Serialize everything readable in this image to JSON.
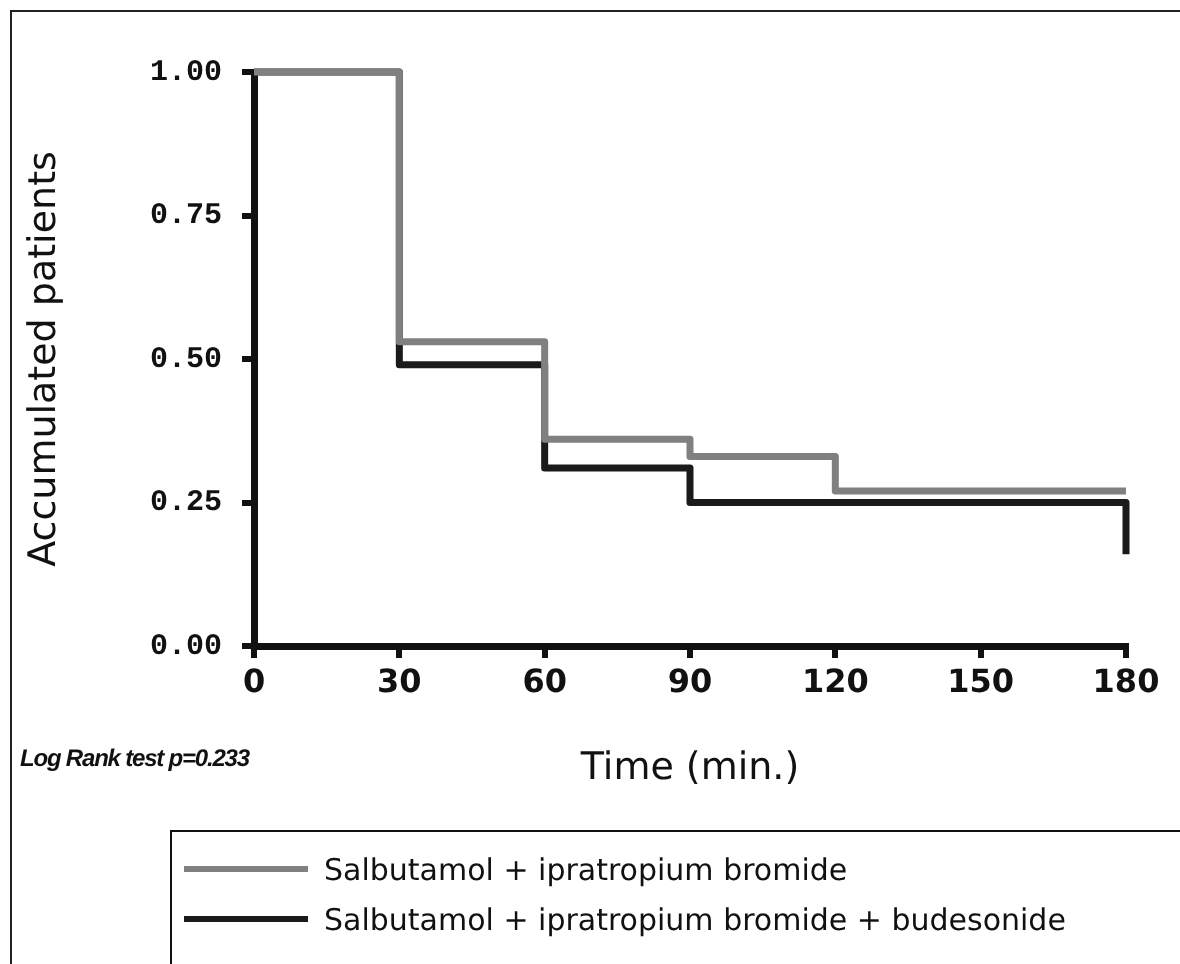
{
  "chart_data": {
    "type": "step",
    "xlabel": "Time (min.)",
    "ylabel": "Accumulated patients",
    "xlim": [
      0,
      180
    ],
    "xticks": [
      0,
      30,
      60,
      90,
      120,
      150,
      180
    ],
    "ylim": [
      0,
      1
    ],
    "yticks": [
      {
        "value": 0,
        "label": "0.00"
      },
      {
        "value": 0.25,
        "label": "0.25"
      },
      {
        "value": 0.5,
        "label": "0.50"
      },
      {
        "value": 0.75,
        "label": "0.75"
      },
      {
        "value": 1,
        "label": "1.00"
      }
    ],
    "series": [
      {
        "name": "Salbutamol + ipratropium bromide",
        "color": "#808080",
        "x": [
          0,
          30,
          60,
          90,
          120,
          180
        ],
        "values": [
          1,
          0.53,
          0.36,
          0.33,
          0.27,
          0.27
        ]
      },
      {
        "name": "Salbutamol + ipratropium bromide + budesonide",
        "color": "#1a1a1a",
        "x": [
          0,
          30,
          60,
          90,
          180
        ],
        "values": [
          1,
          0.49,
          0.31,
          0.25,
          0.16
        ]
      }
    ],
    "legend": "bottom",
    "annotations": [
      "Log Rank test p=0.233"
    ]
  }
}
